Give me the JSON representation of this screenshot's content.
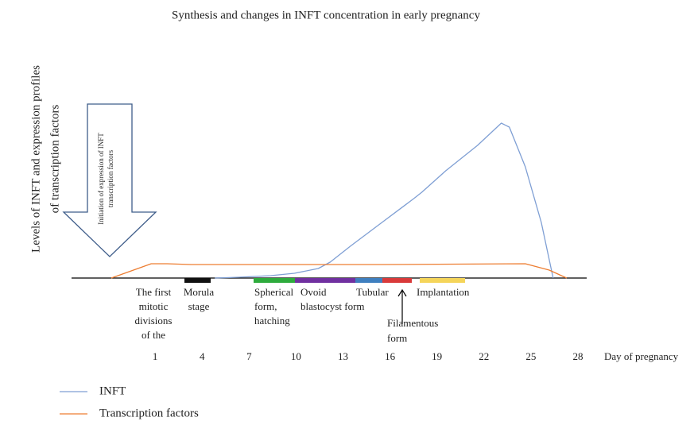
{
  "chart_data": {
    "type": "line",
    "title": "Synthesis and changes in INFT concentration in early pregnancy",
    "ylabel": [
      "Levels of INFT and expression profiles",
      "of transcription factors"
    ],
    "xlabel": "Day of pregnancy",
    "arrow_label": [
      "Initiation of expression of INFT",
      "transcription factors"
    ],
    "stages": [
      [
        "The first",
        "mitotic",
        "divisions",
        "of the"
      ],
      [
        "Morula",
        "stage"
      ],
      [
        "Spherical",
        "form,",
        "hatching"
      ],
      [
        "Ovoid",
        "blastocyst form"
      ],
      [
        "Tubular"
      ],
      [
        "Filamentous",
        "form"
      ],
      [
        "Implantation"
      ]
    ],
    "xlim": [
      -4.5,
      28.5
    ],
    "ylim": [
      0,
      100
    ],
    "xticks": [
      1,
      4,
      7,
      10,
      13,
      16,
      19,
      22,
      25,
      28
    ],
    "series": [
      {
        "name": "INFT",
        "color": "#7f9fd4",
        "x": [
          4.81,
          6.34,
          8.37,
          9.9,
          11.42,
          12.18,
          13.46,
          15.49,
          17.52,
          18.03,
          19.56,
          21.59,
          23.11,
          23.62,
          24.64,
          25.66,
          26.42
        ],
        "values": [
          0,
          0.5,
          1.5,
          3,
          6,
          10,
          20,
          35,
          50,
          54,
          67.5,
          83.5,
          97.5,
          95,
          70,
          35,
          0
        ]
      },
      {
        "name": "Transcription factors",
        "color": "#ed7d31",
        "x": [
          -1.8,
          0.75,
          1.76,
          3.29,
          15.49,
          24.64,
          26.17,
          27.28
        ],
        "values": [
          0,
          9,
          9,
          8.5,
          8.5,
          9,
          5,
          0
        ]
      }
    ]
  }
}
